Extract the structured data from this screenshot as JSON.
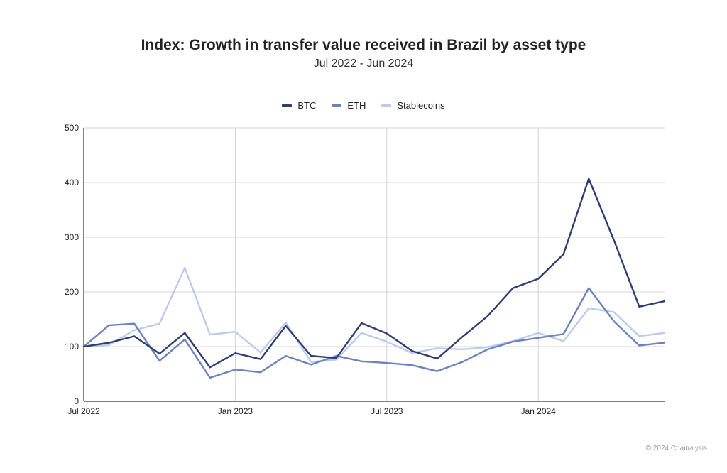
{
  "chart_data": {
    "type": "line",
    "title": "Index: Growth in transfer value received in Brazil by asset type",
    "subtitle": "Jul 2022 - Jun 2024",
    "xlabel": "",
    "ylabel": "",
    "ylim": [
      0,
      500
    ],
    "y_ticks": [
      0,
      100,
      200,
      300,
      400,
      500
    ],
    "y_tick_labels": [
      "0",
      "100",
      "200",
      "300",
      "400",
      "500"
    ],
    "x_ticks": [
      "Jul 2022",
      "Jan 2023",
      "Jul 2023",
      "Jan 2024"
    ],
    "grid": true,
    "legend_position": "top-center",
    "x": [
      "Jul 2022",
      "Aug 2022",
      "Sep 2022",
      "Oct 2022",
      "Nov 2022",
      "Dec 2022",
      "Jan 2023",
      "Feb 2023",
      "Mar 2023",
      "Apr 2023",
      "May 2023",
      "Jun 2023",
      "Jul 2023",
      "Aug 2023",
      "Sep 2023",
      "Oct 2023",
      "Nov 2023",
      "Dec 2023",
      "Jan 2024",
      "Feb 2024",
      "Mar 2024",
      "Apr 2024",
      "May 2024",
      "Jun 2024"
    ],
    "series": [
      {
        "name": "BTC",
        "color": "#2d3e70",
        "values": [
          100,
          107,
          119,
          87,
          125,
          62,
          88,
          77,
          138,
          83,
          79,
          143,
          124,
          92,
          78,
          118,
          156,
          207,
          224,
          269,
          407,
          294,
          173,
          183
        ]
      },
      {
        "name": "ETH",
        "color": "#6b82bd",
        "values": [
          100,
          139,
          142,
          74,
          113,
          43,
          58,
          53,
          83,
          67,
          83,
          73,
          70,
          66,
          55,
          72,
          95,
          109,
          116,
          123,
          207,
          146,
          102,
          107
        ]
      },
      {
        "name": "Stablecoins",
        "color": "#bccbeb",
        "values": [
          100,
          103,
          130,
          142,
          244,
          122,
          127,
          89,
          144,
          72,
          76,
          125,
          109,
          88,
          97,
          95,
          99,
          110,
          125,
          110,
          170,
          163,
          119,
          125
        ]
      }
    ]
  },
  "footer": {
    "copyright": "© 2024 Chainalysis"
  }
}
